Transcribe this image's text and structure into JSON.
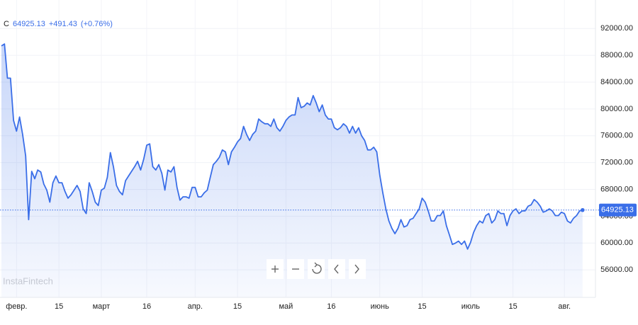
{
  "chart_data": {
    "type": "area",
    "header": {
      "symbol": "C",
      "change": "+491.43",
      "change_pct": "(+0.76%)"
    },
    "watermark": "InstaFintech",
    "color": "#3a6ee8",
    "grid": true,
    "last_price_line": true,
    "ylim": [
      51900,
      95200
    ],
    "yticks": [
      {
        "value": 92000,
        "label": "92000.00"
      },
      {
        "value": 88000,
        "label": "88000.00"
      },
      {
        "value": 84000,
        "label": "84000.00"
      },
      {
        "value": 80000,
        "label": "80000.00"
      },
      {
        "value": 76000,
        "label": "76000.00"
      },
      {
        "value": 72000,
        "label": "72000.00"
      },
      {
        "value": 68000,
        "label": "68000.00"
      },
      {
        "value": 64000,
        "label": "64000.00"
      },
      {
        "value": 60000,
        "label": "60000.00"
      },
      {
        "value": 56000,
        "label": "56000.00"
      }
    ],
    "categories": [
      null,
      null,
      null,
      null,
      null,
      "февр.",
      null,
      null,
      null,
      null,
      null,
      null,
      null,
      null,
      null,
      null,
      null,
      null,
      null,
      "15",
      null,
      null,
      null,
      null,
      null,
      null,
      null,
      null,
      null,
      null,
      null,
      null,
      null,
      "март",
      null,
      null,
      null,
      null,
      null,
      null,
      null,
      null,
      null,
      null,
      null,
      null,
      null,
      null,
      "16",
      null,
      null,
      null,
      null,
      null,
      null,
      null,
      null,
      null,
      null,
      null,
      null,
      null,
      null,
      null,
      "апр.",
      null,
      null,
      null,
      null,
      null,
      null,
      null,
      null,
      null,
      null,
      null,
      null,
      null,
      "15",
      null,
      null,
      null,
      null,
      null,
      null,
      null,
      null,
      null,
      null,
      null,
      null,
      null,
      null,
      null,
      "май",
      null,
      null,
      null,
      null,
      null,
      null,
      null,
      null,
      null,
      null,
      null,
      null,
      null,
      null,
      "16",
      null,
      null,
      null,
      null,
      null,
      null,
      null,
      null,
      null,
      null,
      null,
      null,
      null,
      null,
      null,
      "июнь",
      null,
      null,
      null,
      null,
      null,
      null,
      null,
      null,
      null,
      null,
      null,
      null,
      null,
      "15",
      null,
      null,
      null,
      null,
      null,
      null,
      null,
      null,
      null,
      null,
      null,
      null,
      null,
      null,
      null,
      "июль",
      null,
      null,
      null,
      null,
      null,
      null,
      null,
      null,
      null,
      null,
      null,
      null,
      null,
      "15",
      null,
      null,
      null,
      null,
      null,
      null,
      null,
      null,
      null,
      null,
      null,
      null,
      null,
      null,
      null,
      null,
      "авг.",
      null,
      null,
      null,
      null,
      null,
      null
    ],
    "values": [
      89400,
      89700,
      84600,
      84600,
      78300,
      76700,
      78800,
      76200,
      73000,
      63500,
      70700,
      69600,
      70900,
      70600,
      68800,
      67900,
      66100,
      69000,
      70000,
      69000,
      69000,
      67700,
      66700,
      67200,
      67900,
      68600,
      67700,
      65100,
      64400,
      69000,
      67700,
      66100,
      65600,
      67900,
      68200,
      69800,
      73500,
      71400,
      68600,
      67700,
      67200,
      69300,
      70000,
      70700,
      71400,
      72200,
      70900,
      72500,
      74600,
      74800,
      71400,
      70900,
      71700,
      70400,
      67900,
      70900,
      70600,
      71400,
      68300,
      66400,
      66900,
      66900,
      66700,
      68300,
      68300,
      66900,
      66900,
      67500,
      67900,
      69800,
      71700,
      72200,
      72800,
      73900,
      73600,
      71700,
      73600,
      74300,
      75100,
      75600,
      77400,
      76200,
      75300,
      76200,
      76700,
      78500,
      78100,
      77800,
      77800,
      77400,
      78500,
      77200,
      76700,
      77400,
      78300,
      78800,
      79100,
      79100,
      81700,
      80200,
      80400,
      80900,
      80600,
      82000,
      80900,
      79600,
      80600,
      79100,
      78500,
      78500,
      77200,
      76900,
      77200,
      77800,
      77400,
      76400,
      77400,
      76400,
      77200,
      76000,
      75300,
      73900,
      73900,
      74300,
      73600,
      70100,
      67500,
      65100,
      63300,
      62200,
      61400,
      62200,
      63500,
      62400,
      62600,
      63500,
      63700,
      64400,
      65100,
      66700,
      66100,
      64800,
      63300,
      63300,
      64100,
      64100,
      64800,
      62600,
      61200,
      59800,
      60000,
      60300,
      59800,
      60300,
      59100,
      60100,
      61600,
      62600,
      63300,
      63000,
      64100,
      64400,
      63000,
      63500,
      64800,
      64400,
      64400,
      62600,
      64100,
      64800,
      65100,
      64400,
      64800,
      64800,
      65500,
      65700,
      66500,
      66100,
      65500,
      64600,
      64800,
      65100,
      64800,
      64100,
      64100,
      64600,
      64400,
      63300,
      63000,
      63700,
      64100,
      64800,
      64925.13
    ]
  }
}
